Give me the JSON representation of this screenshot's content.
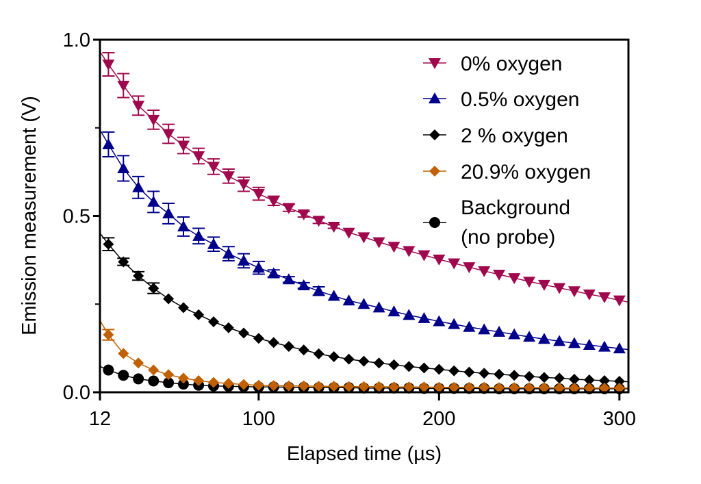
{
  "chart_data": {
    "type": "scatter",
    "title": "",
    "xlabel": "Elapsed time (µs)",
    "ylabel": "Emission measurement (V)",
    "xlim": [
      12,
      305
    ],
    "ylim": [
      0,
      1.0
    ],
    "xticks": [
      12,
      100,
      200,
      300
    ],
    "xtick_labels": [
      "12",
      "100",
      "200",
      "300"
    ],
    "yticks": [
      0.0,
      0.5,
      1.0
    ],
    "ytick_labels": [
      "0.0",
      "0.5",
      "1.0"
    ],
    "yminor_ticks": [
      0.25,
      0.75
    ],
    "grid": false,
    "legend_position": "top-right",
    "x": [
      16.7,
      25,
      33.3,
      41.7,
      50,
      58.3,
      66.7,
      75,
      83.3,
      91.7,
      100,
      108.3,
      116.7,
      125,
      133.3,
      141.7,
      150,
      158.3,
      166.7,
      175,
      183.3,
      191.7,
      200,
      208.3,
      216.7,
      225,
      233.3,
      241.7,
      250,
      258.3,
      266.7,
      275,
      283.3,
      291.7,
      300
    ],
    "series": [
      {
        "name": "0% oxygen",
        "color": "#a0084d",
        "marker": "triangle-down",
        "values": [
          0.93,
          0.87,
          0.813,
          0.773,
          0.733,
          0.7,
          0.67,
          0.64,
          0.613,
          0.59,
          0.563,
          0.543,
          0.523,
          0.505,
          0.487,
          0.47,
          0.453,
          0.44,
          0.426,
          0.413,
          0.401,
          0.389,
          0.377,
          0.366,
          0.355,
          0.344,
          0.334,
          0.324,
          0.314,
          0.305,
          0.296,
          0.287,
          0.278,
          0.27,
          0.261
        ],
        "errors": [
          0.033,
          0.034,
          0.027,
          0.027,
          0.027,
          0.023,
          0.022,
          0.022,
          0.02,
          0.02,
          0.018,
          0.013,
          0.01,
          0.008,
          0.008,
          0.005
        ]
      },
      {
        "name": "0.5% oxygen",
        "color": "#00008b",
        "marker": "triangle-up",
        "values": [
          0.703,
          0.635,
          0.581,
          0.54,
          0.507,
          0.47,
          0.443,
          0.42,
          0.393,
          0.373,
          0.353,
          0.337,
          0.32,
          0.303,
          0.287,
          0.273,
          0.26,
          0.25,
          0.24,
          0.229,
          0.219,
          0.21,
          0.201,
          0.193,
          0.185,
          0.178,
          0.171,
          0.164,
          0.157,
          0.151,
          0.145,
          0.139,
          0.134,
          0.129,
          0.124
        ],
        "errors": [
          0.035,
          0.036,
          0.031,
          0.03,
          0.029,
          0.027,
          0.022,
          0.02,
          0.02,
          0.02,
          0.018,
          0.01,
          0.008,
          0.008,
          0.012
        ]
      },
      {
        "name": "2 % oxygen",
        "color": "#000000",
        "marker": "diamond",
        "values": [
          0.42,
          0.37,
          0.33,
          0.295,
          0.265,
          0.24,
          0.22,
          0.2,
          0.183,
          0.168,
          0.153,
          0.141,
          0.13,
          0.12,
          0.109,
          0.101,
          0.094,
          0.088,
          0.083,
          0.078,
          0.073,
          0.069,
          0.065,
          0.061,
          0.057,
          0.054,
          0.051,
          0.048,
          0.045,
          0.042,
          0.04,
          0.037,
          0.035,
          0.033,
          0.031
        ],
        "errors": [
          0.018,
          0.01,
          0.012,
          0.015
        ]
      },
      {
        "name": "Background (no probe)",
        "legend_lines": [
          "Background",
          "(no probe)"
        ],
        "color": "#000000",
        "marker": "circle",
        "values": [
          0.063,
          0.048,
          0.038,
          0.032,
          0.027,
          0.023,
          0.02,
          0.018,
          0.017,
          0.016,
          0.015,
          0.015,
          0.014,
          0.014,
          0.013,
          0.013,
          0.013,
          0.012,
          0.012,
          0.012,
          0.012,
          0.011,
          0.011,
          0.011,
          0.011,
          0.011,
          0.01,
          0.01,
          0.01,
          0.01,
          0.01,
          0.01,
          0.01,
          0.01,
          0.01
        ],
        "errors": []
      },
      {
        "name": "20.9% oxygen",
        "color": "#c06000",
        "marker": "diamond",
        "values": [
          0.163,
          0.11,
          0.083,
          0.063,
          0.05,
          0.04,
          0.033,
          0.028,
          0.025,
          0.022,
          0.02,
          0.019,
          0.018,
          0.018,
          0.017,
          0.017,
          0.016,
          0.016,
          0.016,
          0.015,
          0.015,
          0.015,
          0.014,
          0.014,
          0.014,
          0.014,
          0.013,
          0.013,
          0.013,
          0.013,
          0.012,
          0.012,
          0.012,
          0.012,
          0.012
        ],
        "errors": [
          0.015
        ]
      }
    ],
    "legend_order": [
      0,
      1,
      2,
      4,
      3
    ]
  }
}
